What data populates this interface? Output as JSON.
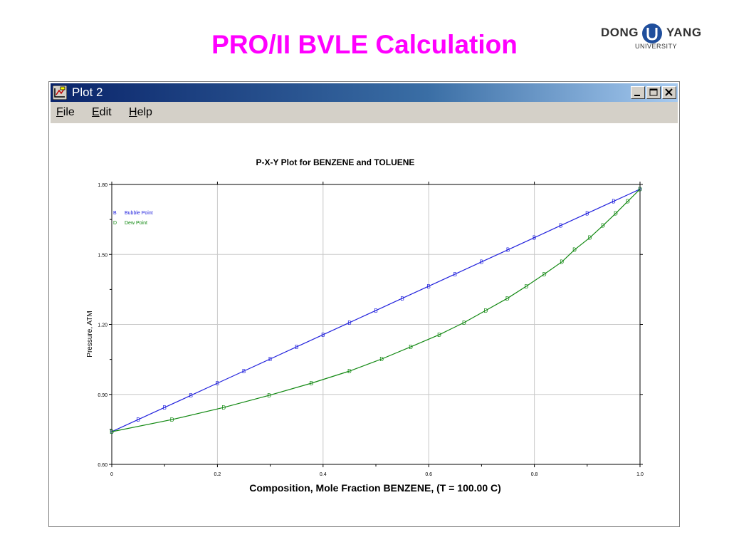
{
  "slide": {
    "title": "PRO/II BVLE Calculation"
  },
  "logo": {
    "word_left": "DONG",
    "word_right": "YANG",
    "subtitle": "UNIVERSITY"
  },
  "window": {
    "title": "Plot 2",
    "menu": [
      {
        "accel": "F",
        "rest": "ile"
      },
      {
        "accel": "E",
        "rest": "dit"
      },
      {
        "accel": "H",
        "rest": "elp"
      }
    ]
  },
  "colors": {
    "title": "#ff00ff",
    "bubble": "#2222dd",
    "dew": "#118811",
    "grid": "#c8c8c8"
  },
  "chart_data": {
    "type": "line",
    "title": "P-X-Y Plot for BENZENE and TOLUENE",
    "xlabel": "Composition, Mole Fraction BENZENE, (T = 100.00 C)",
    "ylabel": "Pressure, ATM",
    "xlim": [
      0,
      1.0
    ],
    "ylim": [
      0.6,
      1.8
    ],
    "x_ticks": [
      "0",
      "0.2",
      "0.4",
      "0.6",
      "0.8",
      "1.0"
    ],
    "y_ticks": [
      "0.60",
      "0.90",
      "1.20",
      "1.50",
      "1.80"
    ],
    "grid": true,
    "legend_position": "top-left",
    "series": [
      {
        "name": "Bubble Point",
        "marker": "B",
        "x": [
          0,
          0.05,
          0.1,
          0.15,
          0.2,
          0.25,
          0.3,
          0.35,
          0.4,
          0.45,
          0.5,
          0.55,
          0.6,
          0.65,
          0.7,
          0.75,
          0.8,
          0.85,
          0.9,
          0.95,
          1.0
        ],
        "y": [
          0.74,
          0.792,
          0.844,
          0.896,
          0.948,
          1.0,
          1.052,
          1.104,
          1.156,
          1.208,
          1.26,
          1.312,
          1.364,
          1.416,
          1.468,
          1.52,
          1.572,
          1.624,
          1.676,
          1.728,
          1.78
        ]
      },
      {
        "name": "Dew Point",
        "marker": "D",
        "x": [
          0,
          0.114,
          0.212,
          0.298,
          0.378,
          0.45,
          0.511,
          0.566,
          0.62,
          0.667,
          0.708,
          0.749,
          0.785,
          0.819,
          0.852,
          0.876,
          0.905,
          0.93,
          0.954,
          0.977,
          1.0
        ],
        "y": [
          0.74,
          0.792,
          0.844,
          0.896,
          0.948,
          1.0,
          1.052,
          1.104,
          1.156,
          1.208,
          1.26,
          1.312,
          1.364,
          1.416,
          1.468,
          1.52,
          1.572,
          1.624,
          1.676,
          1.728,
          1.78
        ]
      }
    ]
  }
}
